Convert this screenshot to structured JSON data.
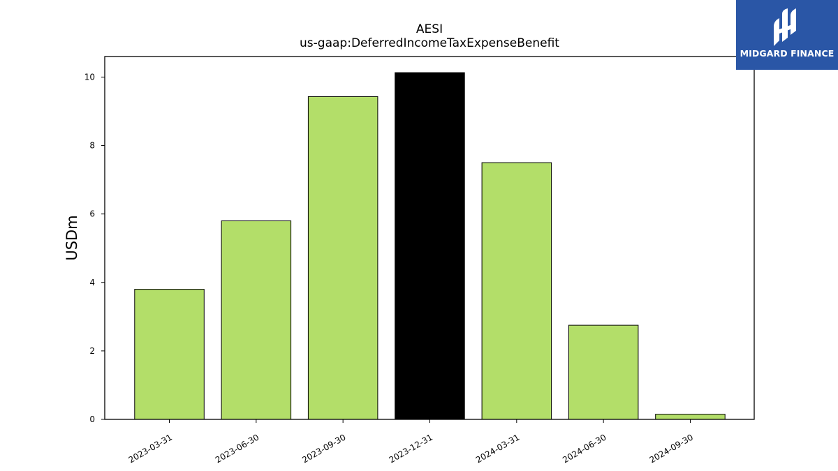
{
  "chart_data": {
    "type": "bar",
    "title": "AESI",
    "subtitle": "us-gaap:DeferredIncomeTaxExpenseBenefit",
    "xlabel": "",
    "ylabel": "USDm",
    "categories": [
      "2023-03-31",
      "2023-06-30",
      "2023-09-30",
      "2023-12-31",
      "2024-03-31",
      "2024-06-30",
      "2024-09-30"
    ],
    "values": [
      3.8,
      5.8,
      9.43,
      10.13,
      7.5,
      2.75,
      0.15
    ],
    "highlight_index": 3,
    "ylim": [
      0,
      10.6
    ],
    "yticks": [
      0,
      2,
      4,
      6,
      8,
      10
    ],
    "grid": false,
    "colors": {
      "bar": "#b3de69",
      "highlight": "#000000",
      "edge": "#000000"
    }
  },
  "brand": {
    "name": "MIDGARD FINANCE",
    "icon": "midgard-logo-icon",
    "color": "#2a56a6"
  }
}
